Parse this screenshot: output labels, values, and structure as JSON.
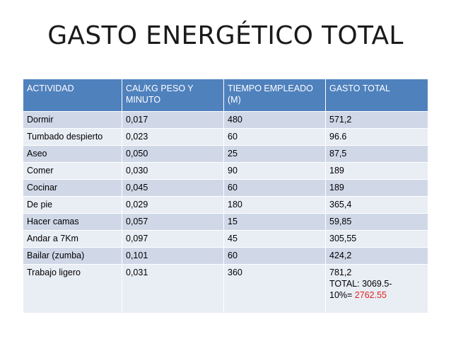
{
  "title": "GASTO ENERGÉTICO TOTAL",
  "table": {
    "headers": [
      "ACTIVIDAD",
      "CAL/KG PESO Y MINUTO",
      "TIEMPO EMPLEADO (M)",
      "GASTO TOTAL"
    ],
    "rows": [
      [
        "Dormir",
        "0,017",
        "480",
        "571,2"
      ],
      [
        "Tumbado despierto",
        "0,023",
        "60",
        "96.6"
      ],
      [
        "Aseo",
        "0,050",
        "25",
        "87,5"
      ],
      [
        "Comer",
        "0,030",
        "90",
        "189"
      ],
      [
        "Cocinar",
        "0,045",
        "60",
        "189"
      ],
      [
        "De pie",
        "0,029",
        "180",
        "365,4"
      ],
      [
        "Hacer camas",
        "0,057",
        "15",
        "59,85"
      ],
      [
        "Andar a 7Km",
        "0,097",
        "45",
        "305,55"
      ],
      [
        "Bailar (zumba)",
        "0,101",
        "60",
        "424,2"
      ],
      [
        "Trabajo ligero",
        "0,031",
        "360",
        "781,2"
      ]
    ],
    "total_line1": "TOTAL: 3069.5-",
    "total_line2_prefix": "10%= ",
    "total_line2_value": "2762.55"
  },
  "colors": {
    "header_bg": "#4f81bd",
    "row_odd_bg": "#d0d8e8",
    "row_even_bg": "#e9edf4",
    "highlight": "#e0241e"
  }
}
